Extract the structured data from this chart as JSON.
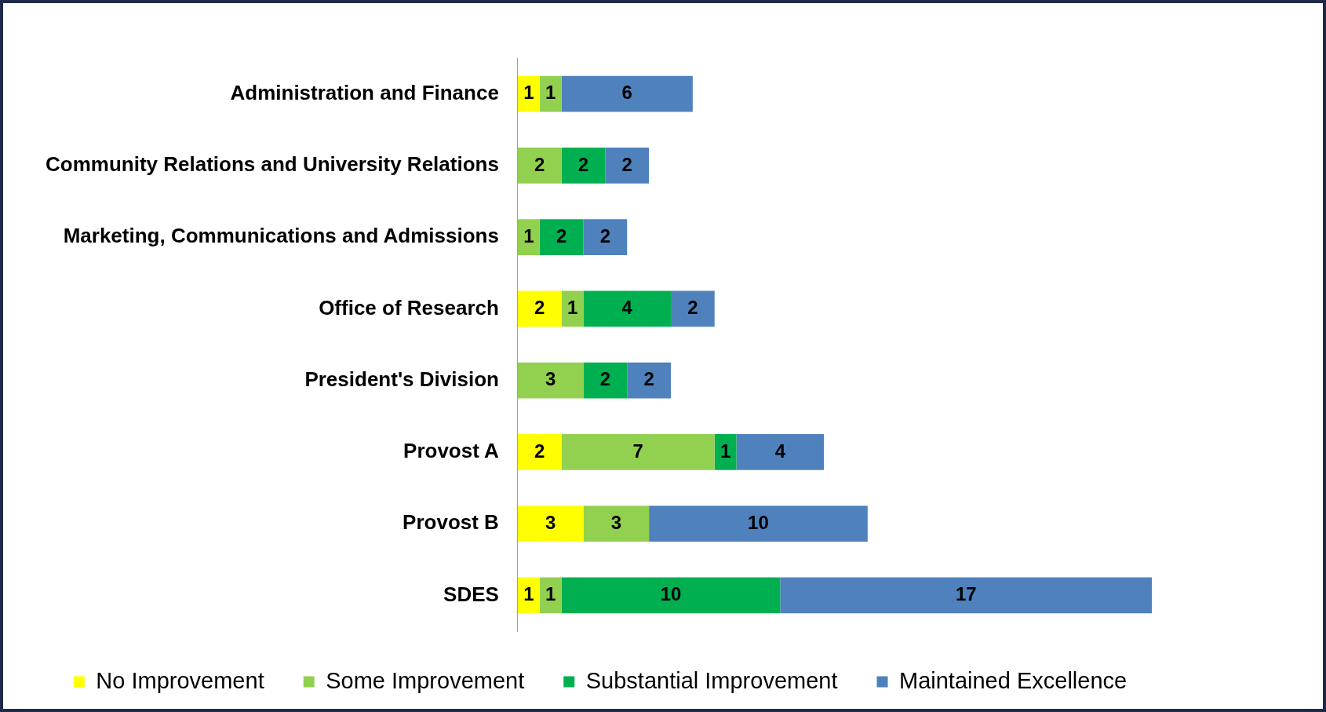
{
  "chart_data": {
    "type": "bar",
    "orientation": "horizontal",
    "stacked": true,
    "data_labels": true,
    "legend": "bottom",
    "grid": false,
    "tick_labels": "y",
    "categories": [
      "Administration and Finance",
      "Community Relations and University Relations",
      "Marketing, Communications and Admissions",
      "Office of Research",
      "President's Division",
      "Provost A",
      "Provost B",
      "SDES"
    ],
    "series": [
      {
        "name": "No Improvement",
        "color": "#ffff00",
        "values": [
          1,
          null,
          null,
          2,
          null,
          2,
          3,
          1
        ]
      },
      {
        "name": "Some Improvement",
        "color": "#92d050",
        "values": [
          1,
          2,
          1,
          1,
          3,
          7,
          3,
          1
        ]
      },
      {
        "name": "Substantial Improvement",
        "color": "#00b050",
        "values": [
          null,
          2,
          2,
          4,
          2,
          1,
          null,
          10
        ]
      },
      {
        "name": "Maintained Excellence",
        "color": "#4f81bd",
        "values": [
          6,
          2,
          2,
          2,
          2,
          4,
          10,
          17
        ]
      }
    ]
  }
}
